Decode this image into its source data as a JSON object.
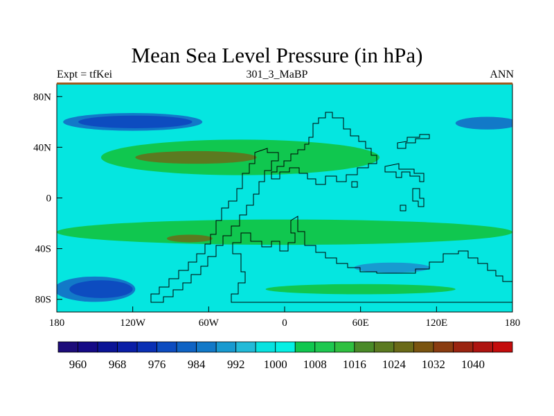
{
  "figure": {
    "title": "Mean Sea Level Pressure (in hPa)",
    "left_string": "Expt = tfKei",
    "center_string": "301_3_MaBP",
    "right_string": "ANN"
  },
  "map": {
    "projection": "cylindrical equidistant",
    "lon_range": [
      -180,
      180
    ],
    "lat_range": [
      -90,
      90
    ],
    "lon_ticks": [
      {
        "value": -180,
        "label": "180"
      },
      {
        "value": -120,
        "label": "120W"
      },
      {
        "value": -60,
        "label": "60W"
      },
      {
        "value": 0,
        "label": "0"
      },
      {
        "value": 60,
        "label": "60E"
      },
      {
        "value": 120,
        "label": "120E"
      },
      {
        "value": 180,
        "label": "180"
      }
    ],
    "lat_ticks": [
      {
        "value": 80,
        "label": "80N"
      },
      {
        "value": 40,
        "label": "40N"
      },
      {
        "value": 0,
        "label": "0"
      },
      {
        "value": -40,
        "label": "40S"
      },
      {
        "value": -80,
        "label": "80S"
      }
    ],
    "background_level_color": "#05e6e0"
  },
  "colorbar": {
    "levels": [
      956,
      960,
      964,
      968,
      972,
      976,
      980,
      984,
      988,
      992,
      996,
      1000,
      1004,
      1008,
      1012,
      1016,
      1020,
      1024,
      1028,
      1032,
      1036,
      1040
    ],
    "colors": [
      "#1d0c7a",
      "#150a86",
      "#0b1496",
      "#0a1ea6",
      "#0a30b4",
      "#0d4cc0",
      "#0f63c4",
      "#1279c8",
      "#189ad0",
      "#22bad8",
      "#08e2e0",
      "#05f0e4",
      "#10c74f",
      "#1ec850",
      "#2fc040",
      "#4a8a28",
      "#5b7a20",
      "#6a6a18",
      "#7a5410",
      "#8a3c10",
      "#9a2410",
      "#ae1410",
      "#c40c0c"
    ],
    "labels": [
      "960",
      "968",
      "976",
      "984",
      "992",
      "1000",
      "1008",
      "1016",
      "1024",
      "1032",
      "1040"
    ]
  },
  "chart_data": {
    "type": "heatmap",
    "variable": "Mean Sea Level Pressure",
    "units": "hPa",
    "regions": [
      {
        "level_color": "#1279c8",
        "label": "~984 low, North Pacific/Atlantic belt",
        "lon_center": -120,
        "lat_center": 60,
        "lon_half": 55,
        "lat_half": 7
      },
      {
        "level_color": "#0d4cc0",
        "label": "~976 core, northern low",
        "lon_center": -118,
        "lat_center": 60,
        "lon_half": 45,
        "lat_half": 5
      },
      {
        "level_color": "#1279c8",
        "label": "~988 low, far east north",
        "lon_center": 160,
        "lat_center": 59,
        "lon_half": 25,
        "lat_half": 5
      },
      {
        "level_color": "#10c74f",
        "label": "subtropical high belt north",
        "lon_center": -35,
        "lat_center": 32,
        "lon_half": 110,
        "lat_half": 14
      },
      {
        "level_color": "#5b7a20",
        "label": "~1016 high, north subtropics",
        "lon_center": -70,
        "lat_center": 32,
        "lon_half": 48,
        "lat_half": 5
      },
      {
        "level_color": "#10c74f",
        "label": "subtropical high belt south",
        "lon_center": 0,
        "lat_center": -27,
        "lon_half": 180,
        "lat_half": 10
      },
      {
        "level_color": "#5b7a20",
        "label": "~1016 high, south subtropics",
        "lon_center": -75,
        "lat_center": -32,
        "lon_half": 18,
        "lat_half": 3
      },
      {
        "level_color": "#1279c8",
        "label": "~988 low, southern ocean",
        "lon_center": -150,
        "lat_center": -72,
        "lon_half": 32,
        "lat_half": 10
      },
      {
        "level_color": "#0d4cc0",
        "label": "~976 core, southern low",
        "lon_center": -145,
        "lat_center": -72,
        "lon_half": 25,
        "lat_half": 7
      },
      {
        "level_color": "#189ad0",
        "label": "~992 band, south mid-latitudes",
        "lon_center": 85,
        "lat_center": -55,
        "lon_half": 30,
        "lat_half": 4
      },
      {
        "level_color": "#10c74f",
        "label": "~1004 band, southern high lats",
        "lon_center": 60,
        "lat_center": -72,
        "lon_half": 75,
        "lat_half": 4
      }
    ]
  }
}
